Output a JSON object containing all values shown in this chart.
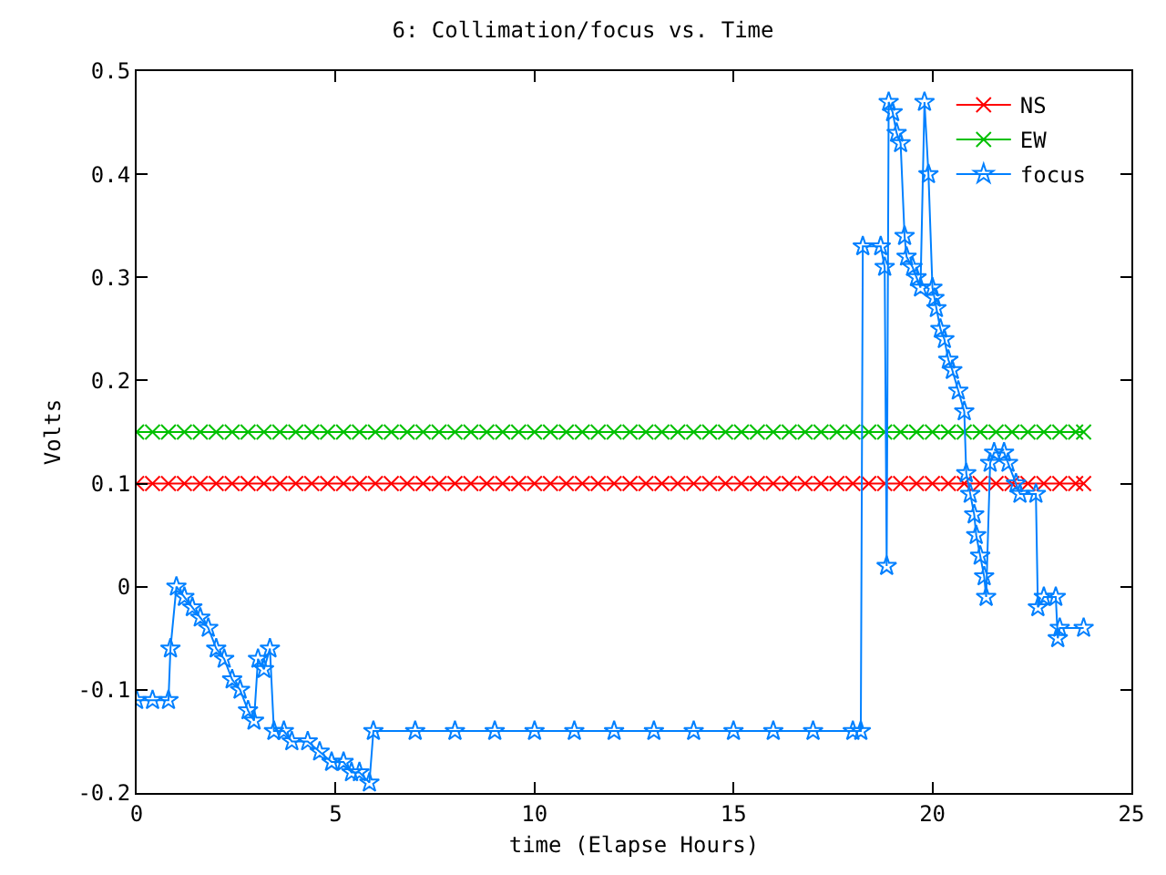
{
  "chart_data": {
    "type": "line",
    "title": "6: Collimation/focus vs. Time",
    "xlabel": "time (Elapse Hours)",
    "ylabel": "Volts",
    "xlim": [
      0,
      25
    ],
    "xticks": [
      0,
      5,
      10,
      15,
      20,
      25
    ],
    "ylim": [
      -0.2,
      0.5
    ],
    "yticks": [
      -0.2,
      -0.1,
      0,
      0.1,
      0.2,
      0.3,
      0.4,
      0.5
    ],
    "legend": "top right",
    "line_style": "solid",
    "series": [
      {
        "name": "NS",
        "color": "#ff0000",
        "marker": "cross",
        "x": [
          0,
          0.4,
          0.8,
          1.2,
          1.6,
          2,
          2.4,
          2.8,
          3.2,
          3.6,
          4,
          4.4,
          4.8,
          5.2,
          5.6,
          6,
          6.4,
          6.8,
          7.2,
          7.6,
          8,
          8.4,
          8.8,
          9.2,
          9.6,
          10,
          10.4,
          10.8,
          11.2,
          11.6,
          12,
          12.4,
          12.8,
          13.2,
          13.6,
          14,
          14.4,
          14.8,
          15.2,
          15.6,
          16,
          16.4,
          16.8,
          17.2,
          17.6,
          18,
          18.4,
          18.8,
          19.2,
          19.6,
          20,
          20.4,
          20.8,
          21.2,
          21.6,
          22,
          22.4,
          22.8,
          23.2,
          23.6,
          23.8
        ],
        "values": [
          0.1,
          0.1,
          0.1,
          0.1,
          0.1,
          0.1,
          0.1,
          0.1,
          0.1,
          0.1,
          0.1,
          0.1,
          0.1,
          0.1,
          0.1,
          0.1,
          0.1,
          0.1,
          0.1,
          0.1,
          0.1,
          0.1,
          0.1,
          0.1,
          0.1,
          0.1,
          0.1,
          0.1,
          0.1,
          0.1,
          0.1,
          0.1,
          0.1,
          0.1,
          0.1,
          0.1,
          0.1,
          0.1,
          0.1,
          0.1,
          0.1,
          0.1,
          0.1,
          0.1,
          0.1,
          0.1,
          0.1,
          0.1,
          0.1,
          0.1,
          0.1,
          0.1,
          0.1,
          0.1,
          0.1,
          0.1,
          0.1,
          0.1,
          0.1,
          0.1,
          0.1
        ]
      },
      {
        "name": "EW",
        "color": "#00c000",
        "marker": "cross",
        "x": [
          0,
          0.4,
          0.8,
          1.2,
          1.6,
          2,
          2.4,
          2.8,
          3.2,
          3.6,
          4,
          4.4,
          4.8,
          5.2,
          5.6,
          6,
          6.4,
          6.8,
          7.2,
          7.6,
          8,
          8.4,
          8.8,
          9.2,
          9.6,
          10,
          10.4,
          10.8,
          11.2,
          11.6,
          12,
          12.4,
          12.8,
          13.2,
          13.6,
          14,
          14.4,
          14.8,
          15.2,
          15.6,
          16,
          16.4,
          16.8,
          17.2,
          17.6,
          18,
          18.4,
          18.8,
          19.2,
          19.6,
          20,
          20.4,
          20.8,
          21.2,
          21.6,
          22,
          22.4,
          22.8,
          23.2,
          23.6,
          23.8
        ],
        "values": [
          0.15,
          0.15,
          0.15,
          0.15,
          0.15,
          0.15,
          0.15,
          0.15,
          0.15,
          0.15,
          0.15,
          0.15,
          0.15,
          0.15,
          0.15,
          0.15,
          0.15,
          0.15,
          0.15,
          0.15,
          0.15,
          0.15,
          0.15,
          0.15,
          0.15,
          0.15,
          0.15,
          0.15,
          0.15,
          0.15,
          0.15,
          0.15,
          0.15,
          0.15,
          0.15,
          0.15,
          0.15,
          0.15,
          0.15,
          0.15,
          0.15,
          0.15,
          0.15,
          0.15,
          0.15,
          0.15,
          0.15,
          0.15,
          0.15,
          0.15,
          0.15,
          0.15,
          0.15,
          0.15,
          0.15,
          0.15,
          0.15,
          0.15,
          0.15,
          0.15,
          0.15
        ]
      },
      {
        "name": "focus",
        "color": "#0080ff",
        "marker": "star",
        "x": [
          0,
          0.4,
          0.8,
          0.85,
          1.0,
          1.2,
          1.4,
          1.6,
          1.8,
          2.0,
          2.2,
          2.4,
          2.6,
          2.8,
          2.95,
          3.05,
          3.2,
          3.35,
          3.45,
          3.7,
          3.9,
          4.3,
          4.6,
          4.9,
          5.2,
          5.4,
          5.6,
          5.85,
          5.95,
          7,
          8,
          9,
          10,
          11,
          12,
          13,
          14,
          15,
          16,
          17,
          18,
          18.2,
          18.25,
          18.7,
          18.8,
          18.85,
          18.9,
          19.0,
          19.1,
          19.2,
          19.3,
          19.35,
          19.5,
          19.6,
          19.7,
          19.8,
          19.9,
          20.0,
          20.05,
          20.1,
          20.2,
          20.3,
          20.4,
          20.5,
          20.65,
          20.8,
          20.85,
          20.95,
          21.05,
          21.1,
          21.2,
          21.3,
          21.35,
          21.45,
          21.55,
          21.8,
          21.9,
          22.1,
          22.2,
          22.6,
          22.65,
          22.8,
          23.1,
          23.15,
          23.2,
          23.8
        ],
        "values": [
          -0.11,
          -0.11,
          -0.11,
          -0.06,
          0,
          -0.01,
          -0.02,
          -0.03,
          -0.04,
          -0.06,
          -0.07,
          -0.09,
          -0.1,
          -0.12,
          -0.13,
          -0.07,
          -0.08,
          -0.06,
          -0.14,
          -0.14,
          -0.15,
          -0.15,
          -0.16,
          -0.17,
          -0.17,
          -0.18,
          -0.18,
          -0.19,
          -0.14,
          -0.14,
          -0.14,
          -0.14,
          -0.14,
          -0.14,
          -0.14,
          -0.14,
          -0.14,
          -0.14,
          -0.14,
          -0.14,
          -0.14,
          -0.14,
          0.33,
          0.33,
          0.31,
          0.02,
          0.47,
          0.46,
          0.44,
          0.43,
          0.34,
          0.32,
          0.31,
          0.3,
          0.29,
          0.47,
          0.4,
          0.29,
          0.28,
          0.27,
          0.25,
          0.24,
          0.22,
          0.21,
          0.19,
          0.17,
          0.11,
          0.09,
          0.07,
          0.05,
          0.03,
          0.01,
          -0.01,
          0.12,
          0.13,
          0.13,
          0.12,
          0.1,
          0.09,
          0.09,
          -0.02,
          -0.01,
          -0.01,
          -0.05,
          -0.04,
          -0.04
        ]
      }
    ]
  }
}
